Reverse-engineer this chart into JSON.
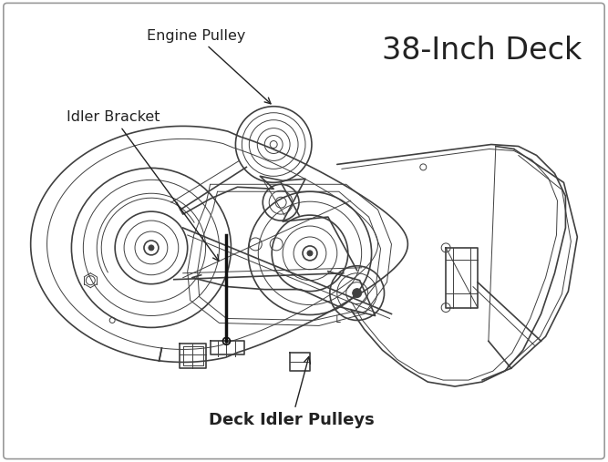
{
  "title": "38-Inch Deck",
  "bg_color": "#ffffff",
  "border_color": "#aaaaaa",
  "line_color": "#404040",
  "label_color": "#222222",
  "labels": {
    "engine_pulley": "Engine Pulley",
    "idler_bracket": "Idler Bracket",
    "deck_idler_pulleys": "Deck Idler Pulleys"
  },
  "title_fontsize": 24,
  "label_fontsize": 11.5,
  "fig_width": 6.67,
  "fig_height": 5.07,
  "dpi": 100
}
